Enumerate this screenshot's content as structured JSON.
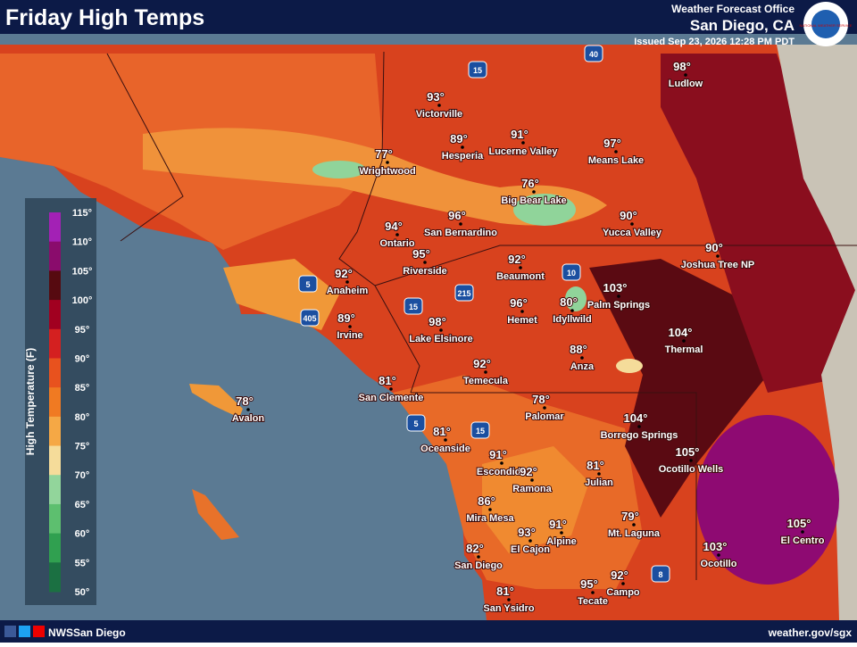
{
  "header": {
    "title": "Friday High Temps",
    "office": "Weather Forecast Office",
    "location": "San Diego, CA",
    "issued": "Issued Sep 23, 2026 12:28 PM PDT",
    "logo": "NATIONAL WEATHER SERVICE"
  },
  "legend": {
    "title": "High Temperature (F)",
    "ticks": [
      "115°",
      "110°",
      "105°",
      "100°",
      "95°",
      "90°",
      "85°",
      "80°",
      "75°",
      "70°",
      "65°",
      "60°",
      "55°",
      "50°"
    ]
  },
  "cities": [
    {
      "name": "Victorville",
      "temp": "93°"
    },
    {
      "name": "Hesperia",
      "temp": "89°"
    },
    {
      "name": "Lucerne Valley",
      "temp": "91°"
    },
    {
      "name": "Means Lake",
      "temp": "97°"
    },
    {
      "name": "Ludlow",
      "temp": "98°"
    },
    {
      "name": "Wrightwood",
      "temp": "77°"
    },
    {
      "name": "Big Bear Lake",
      "temp": "76°"
    },
    {
      "name": "Yucca Valley",
      "temp": "90°"
    },
    {
      "name": "Joshua Tree NP",
      "temp": "90°"
    },
    {
      "name": "Ontario",
      "temp": "94°"
    },
    {
      "name": "San Bernardino",
      "temp": "96°"
    },
    {
      "name": "Riverside",
      "temp": "95°"
    },
    {
      "name": "Beaumont",
      "temp": "92°"
    },
    {
      "name": "Anaheim",
      "temp": "92°"
    },
    {
      "name": "Irvine",
      "temp": "89°"
    },
    {
      "name": "Palm Springs",
      "temp": "103°"
    },
    {
      "name": "Idyllwild",
      "temp": "80°"
    },
    {
      "name": "Hemet",
      "temp": "96°"
    },
    {
      "name": "Lake Elsinore",
      "temp": "98°"
    },
    {
      "name": "Thermal",
      "temp": "104°"
    },
    {
      "name": "Anza",
      "temp": "88°"
    },
    {
      "name": "Temecula",
      "temp": "92°"
    },
    {
      "name": "San Clemente",
      "temp": "81°"
    },
    {
      "name": "Avalon",
      "temp": "78°"
    },
    {
      "name": "Palomar",
      "temp": "78°"
    },
    {
      "name": "Borrego Springs",
      "temp": "104°"
    },
    {
      "name": "Oceanside",
      "temp": "81°"
    },
    {
      "name": "Escondido",
      "temp": "91°"
    },
    {
      "name": "Ramona",
      "temp": "92°"
    },
    {
      "name": "Julian",
      "temp": "81°"
    },
    {
      "name": "Ocotillo Wells",
      "temp": "105°"
    },
    {
      "name": "Mira Mesa",
      "temp": "86°"
    },
    {
      "name": "Mt. Laguna",
      "temp": "79°"
    },
    {
      "name": "Alpine",
      "temp": "91°"
    },
    {
      "name": "El Cajon",
      "temp": "93°"
    },
    {
      "name": "El Centro",
      "temp": "105°"
    },
    {
      "name": "San Diego",
      "temp": "82°"
    },
    {
      "name": "Ocotillo",
      "temp": "103°"
    },
    {
      "name": "Campo",
      "temp": "92°"
    },
    {
      "name": "Tecate",
      "temp": "95°"
    },
    {
      "name": "San Ysidro",
      "temp": "81°"
    }
  ],
  "highways": [
    "15",
    "40",
    "5",
    "405",
    "15",
    "215",
    "10",
    "5",
    "15",
    "8"
  ],
  "footer": {
    "social": "NWSSan Diego",
    "url": "weather.gov/sgx"
  }
}
